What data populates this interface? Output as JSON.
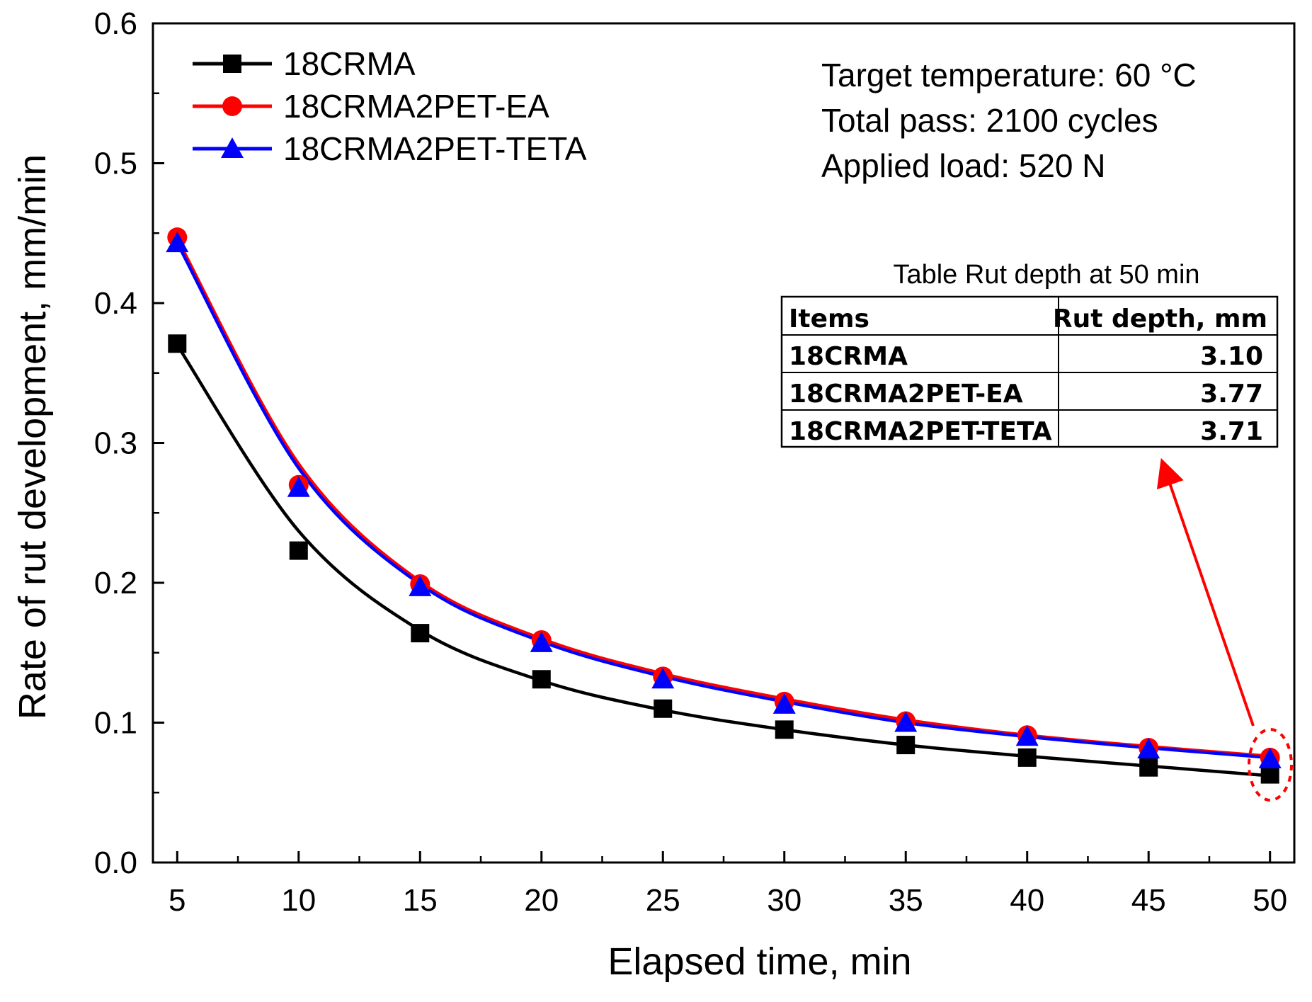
{
  "chart_data": {
    "type": "line",
    "xlabel": "Elapsed time, min",
    "ylabel": "Rate of rut development, mm/min",
    "xlim": [
      4,
      51
    ],
    "ylim": [
      0.0,
      0.6
    ],
    "x_ticks": [
      5,
      10,
      15,
      20,
      25,
      30,
      35,
      40,
      45,
      50
    ],
    "x_tick_labels": [
      "5",
      "10",
      "15",
      "20",
      "25",
      "30",
      "35",
      "40",
      "45",
      "50"
    ],
    "y_ticks": [
      0.0,
      0.1,
      0.2,
      0.3,
      0.4,
      0.5,
      0.6
    ],
    "y_tick_labels": [
      "0.0",
      "0.1",
      "0.2",
      "0.3",
      "0.4",
      "0.5",
      "0.6"
    ],
    "x": [
      5,
      10,
      15,
      20,
      25,
      30,
      35,
      40,
      45,
      50
    ],
    "series": [
      {
        "name": "18CRMA",
        "color": "#000000",
        "marker": "square",
        "values": [
          0.371,
          0.223,
          0.164,
          0.131,
          0.11,
          0.095,
          0.084,
          0.075,
          0.068,
          0.063
        ],
        "fit": [
          0.37,
          0.237,
          0.166,
          0.13,
          0.109,
          0.095,
          0.084,
          0.076,
          0.069,
          0.062
        ]
      },
      {
        "name": "18CRMA2PET-EA",
        "color": "#ff0000",
        "marker": "circle",
        "values": [
          0.447,
          0.27,
          0.199,
          0.159,
          0.133,
          0.115,
          0.101,
          0.091,
          0.082,
          0.075
        ],
        "fit": [
          0.446,
          0.285,
          0.201,
          0.16,
          0.135,
          0.117,
          0.102,
          0.091,
          0.083,
          0.076
        ]
      },
      {
        "name": "18CRMA2PET-TETA",
        "color": "#0000ff",
        "marker": "triangle",
        "values": [
          0.443,
          0.268,
          0.197,
          0.157,
          0.131,
          0.113,
          0.1,
          0.09,
          0.081,
          0.074
        ],
        "fit": [
          0.443,
          0.282,
          0.199,
          0.158,
          0.133,
          0.115,
          0.1,
          0.09,
          0.082,
          0.075
        ]
      }
    ],
    "legend_position": "top-left",
    "annotations": [
      "Target temperature: 60 °C",
      "Total pass: 2100 cycles",
      "Applied load: 520 N"
    ],
    "inset_table": {
      "title": "Table Rut depth at 50 min",
      "headers": [
        "Items",
        "Rut depth, mm"
      ],
      "rows": [
        [
          "18CRMA",
          "3.10"
        ],
        [
          "18CRMA2PET-EA",
          "3.77"
        ],
        [
          "18CRMA2PET-TETA",
          "3.71"
        ]
      ]
    },
    "highlight_color": "#ff0000"
  }
}
